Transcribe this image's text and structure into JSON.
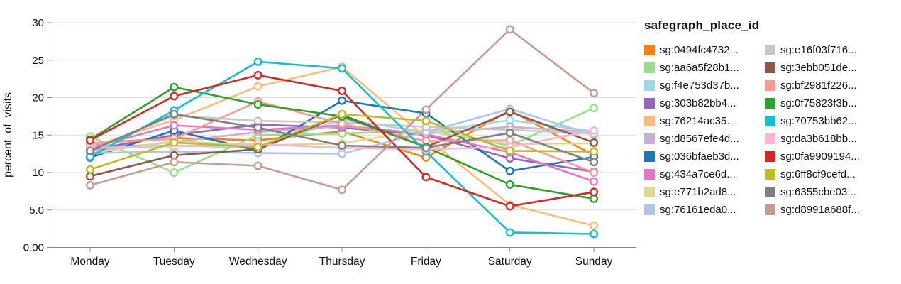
{
  "chart_data": {
    "type": "line",
    "title": "",
    "xlabel": "",
    "ylabel": "percent_of_visits",
    "ylim": [
      0,
      30
    ],
    "grid": true,
    "legend_title": "safegraph_place_id",
    "legend_position": "right",
    "y_ticks": [
      {
        "value": 30,
        "label": "30"
      },
      {
        "value": 25,
        "label": "25"
      },
      {
        "value": 20,
        "label": "20"
      },
      {
        "value": 15,
        "label": "15"
      },
      {
        "value": 10,
        "label": "10"
      },
      {
        "value": 5,
        "label": "5.0"
      },
      {
        "value": 0,
        "label": "0.00"
      }
    ],
    "categories": [
      "Monday",
      "Tuesday",
      "Wednesday",
      "Thursday",
      "Friday",
      "Saturday",
      "Sunday"
    ],
    "series": [
      {
        "name": "sg:0494fc4732...",
        "color": "#ff7f0e",
        "values": [
          13.9,
          14.6,
          14.3,
          15.5,
          12.0,
          18.3,
          12.3
        ]
      },
      {
        "name": "sg:aa6a5f28b1...",
        "color": "#98df8a",
        "values": [
          14.8,
          10.0,
          15.0,
          15.2,
          15.6,
          13.6,
          18.6
        ]
      },
      {
        "name": "sg:f4e753d37b...",
        "color": "#9edae5",
        "values": [
          13.6,
          13.6,
          13.3,
          17.1,
          15.4,
          17.0,
          15.5
        ]
      },
      {
        "name": "sg:303b82bb4...",
        "color": "#9467bd",
        "values": [
          13.0,
          15.0,
          16.4,
          16.0,
          15.0,
          11.9,
          10.1
        ]
      },
      {
        "name": "sg:76214ac35...",
        "color": "#ffbb78",
        "values": [
          13.4,
          17.0,
          21.5,
          24.1,
          14.7,
          5.7,
          2.9
        ]
      },
      {
        "name": "sg:d8567efe4d...",
        "color": "#c5b0d5",
        "values": [
          12.9,
          14.1,
          15.4,
          16.2,
          15.2,
          16.1,
          15.4
        ]
      },
      {
        "name": "sg:036bfaeb3d...",
        "color": "#1f77b4",
        "values": [
          12.0,
          15.6,
          12.9,
          19.6,
          17.9,
          10.2,
          12.1
        ]
      },
      {
        "name": "sg:434a7ce6d...",
        "color": "#e377c2",
        "values": [
          13.3,
          16.3,
          15.7,
          16.3,
          15.1,
          12.7,
          8.8
        ]
      },
      {
        "name": "sg:e771b2ad8...",
        "color": "#dbdb8d",
        "values": [
          12.6,
          14.2,
          13.6,
          13.9,
          15.7,
          13.8,
          13.9
        ]
      },
      {
        "name": "sg:76161eda0...",
        "color": "#aec7e8",
        "values": [
          12.6,
          12.8,
          12.6,
          12.5,
          15.4,
          18.5,
          15.0
        ]
      },
      {
        "name": "sg:e16f03f716...",
        "color": "#c7c7c7",
        "values": [
          13.0,
          17.6,
          16.9,
          16.7,
          16.1,
          15.7,
          15.2
        ]
      },
      {
        "name": "sg:3ebb051de...",
        "color": "#8c564b",
        "values": [
          9.5,
          12.3,
          13.1,
          17.7,
          13.4,
          18.1,
          14.0
        ]
      },
      {
        "name": "sg:bf2981f226...",
        "color": "#ff9896",
        "values": [
          13.9,
          14.5,
          19.5,
          16.5,
          14.2,
          14.3,
          10.0
        ]
      },
      {
        "name": "sg:0f75823f3b...",
        "color": "#2ca02c",
        "values": [
          14.4,
          21.4,
          19.1,
          17.5,
          13.4,
          8.4,
          6.5
        ]
      },
      {
        "name": "sg:70753bb62...",
        "color": "#17becf",
        "values": [
          12.1,
          18.3,
          24.8,
          23.9,
          12.8,
          2.0,
          1.8
        ]
      },
      {
        "name": "sg:da3b618bb...",
        "color": "#f7b6d2",
        "values": [
          13.3,
          13.5,
          13.8,
          13.3,
          13.1,
          13.4,
          15.6
        ]
      },
      {
        "name": "sg:0fa9909194...",
        "color": "#d62728",
        "values": [
          14.3,
          20.2,
          23.0,
          20.9,
          9.4,
          5.5,
          7.4
        ]
      },
      {
        "name": "sg:6ff8cf9cefd...",
        "color": "#bcbd22",
        "values": [
          10.4,
          14.0,
          13.4,
          17.8,
          16.9,
          12.9,
          12.8
        ]
      },
      {
        "name": "sg:6355cbe03...",
        "color": "#7f7f7f",
        "values": [
          12.9,
          17.8,
          16.0,
          13.6,
          13.3,
          15.3,
          11.4
        ]
      },
      {
        "name": "sg:d8991a688f...",
        "color": "#c49c94",
        "values": [
          8.3,
          11.4,
          10.9,
          7.7,
          18.4,
          29.1,
          20.6
        ]
      }
    ],
    "style": {
      "grid_color": "#dddddd",
      "axis_color": "#888888",
      "label_color": "#111111",
      "point_fill": "#ffffff"
    }
  }
}
